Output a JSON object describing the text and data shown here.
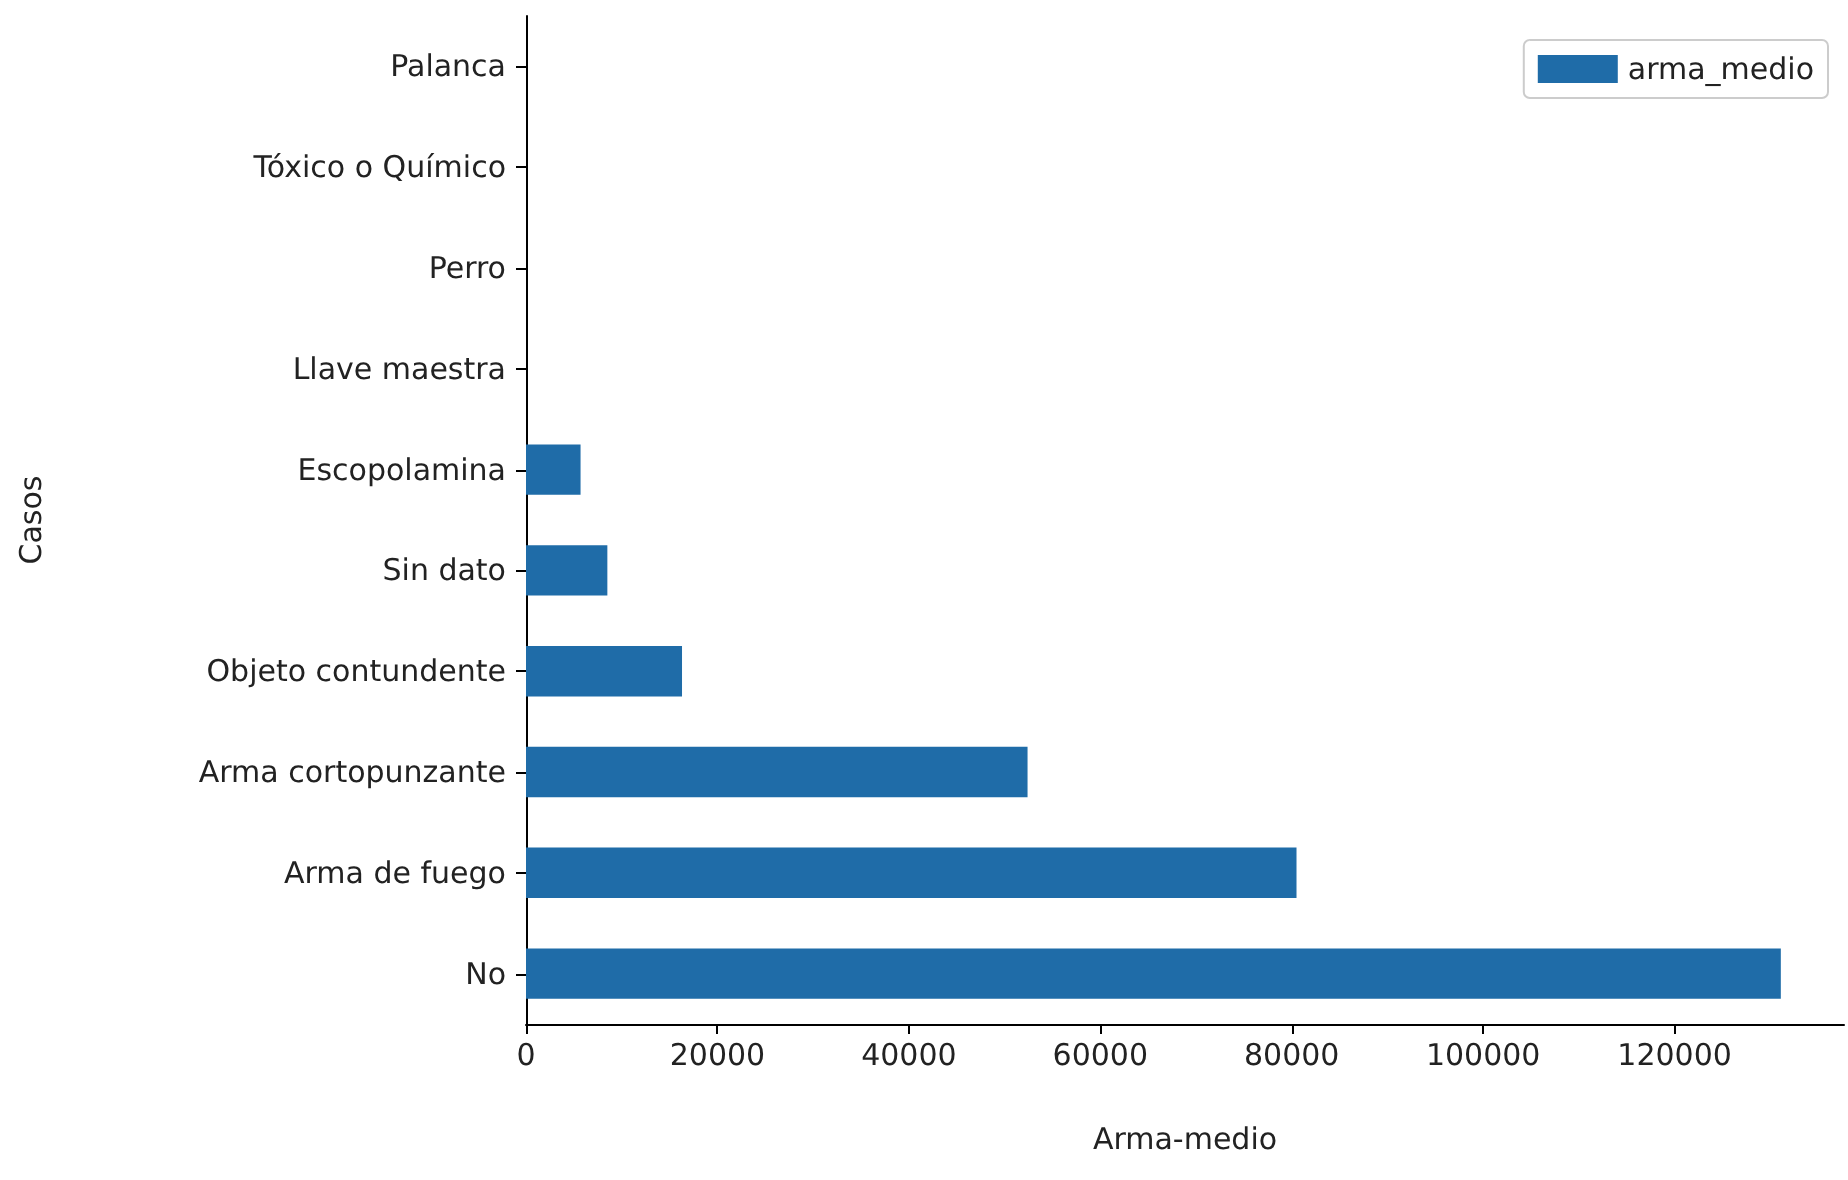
{
  "chart_data": {
    "type": "bar",
    "orientation": "horizontal",
    "xlabel": "Arma-medio",
    "ylabel": "Casos",
    "categories": [
      "Palanca",
      "Tóxico o Químico",
      "Perro",
      "Llave maestra",
      "Escopolamina",
      "Sin dato",
      "Objeto contundente",
      "Arma cortopunzante",
      "Arma de fuego",
      "No"
    ],
    "series": [
      {
        "name": "arma_medio",
        "color": "#1f6ca8",
        "values": [
          0,
          0,
          0,
          0,
          5700,
          8500,
          16300,
          52400,
          80500,
          131100
        ]
      }
    ],
    "xlim": [
      0,
      137700
    ],
    "xticks": [
      0,
      20000,
      40000,
      60000,
      80000,
      100000,
      120000
    ],
    "legend": "top right",
    "grid": false
  }
}
